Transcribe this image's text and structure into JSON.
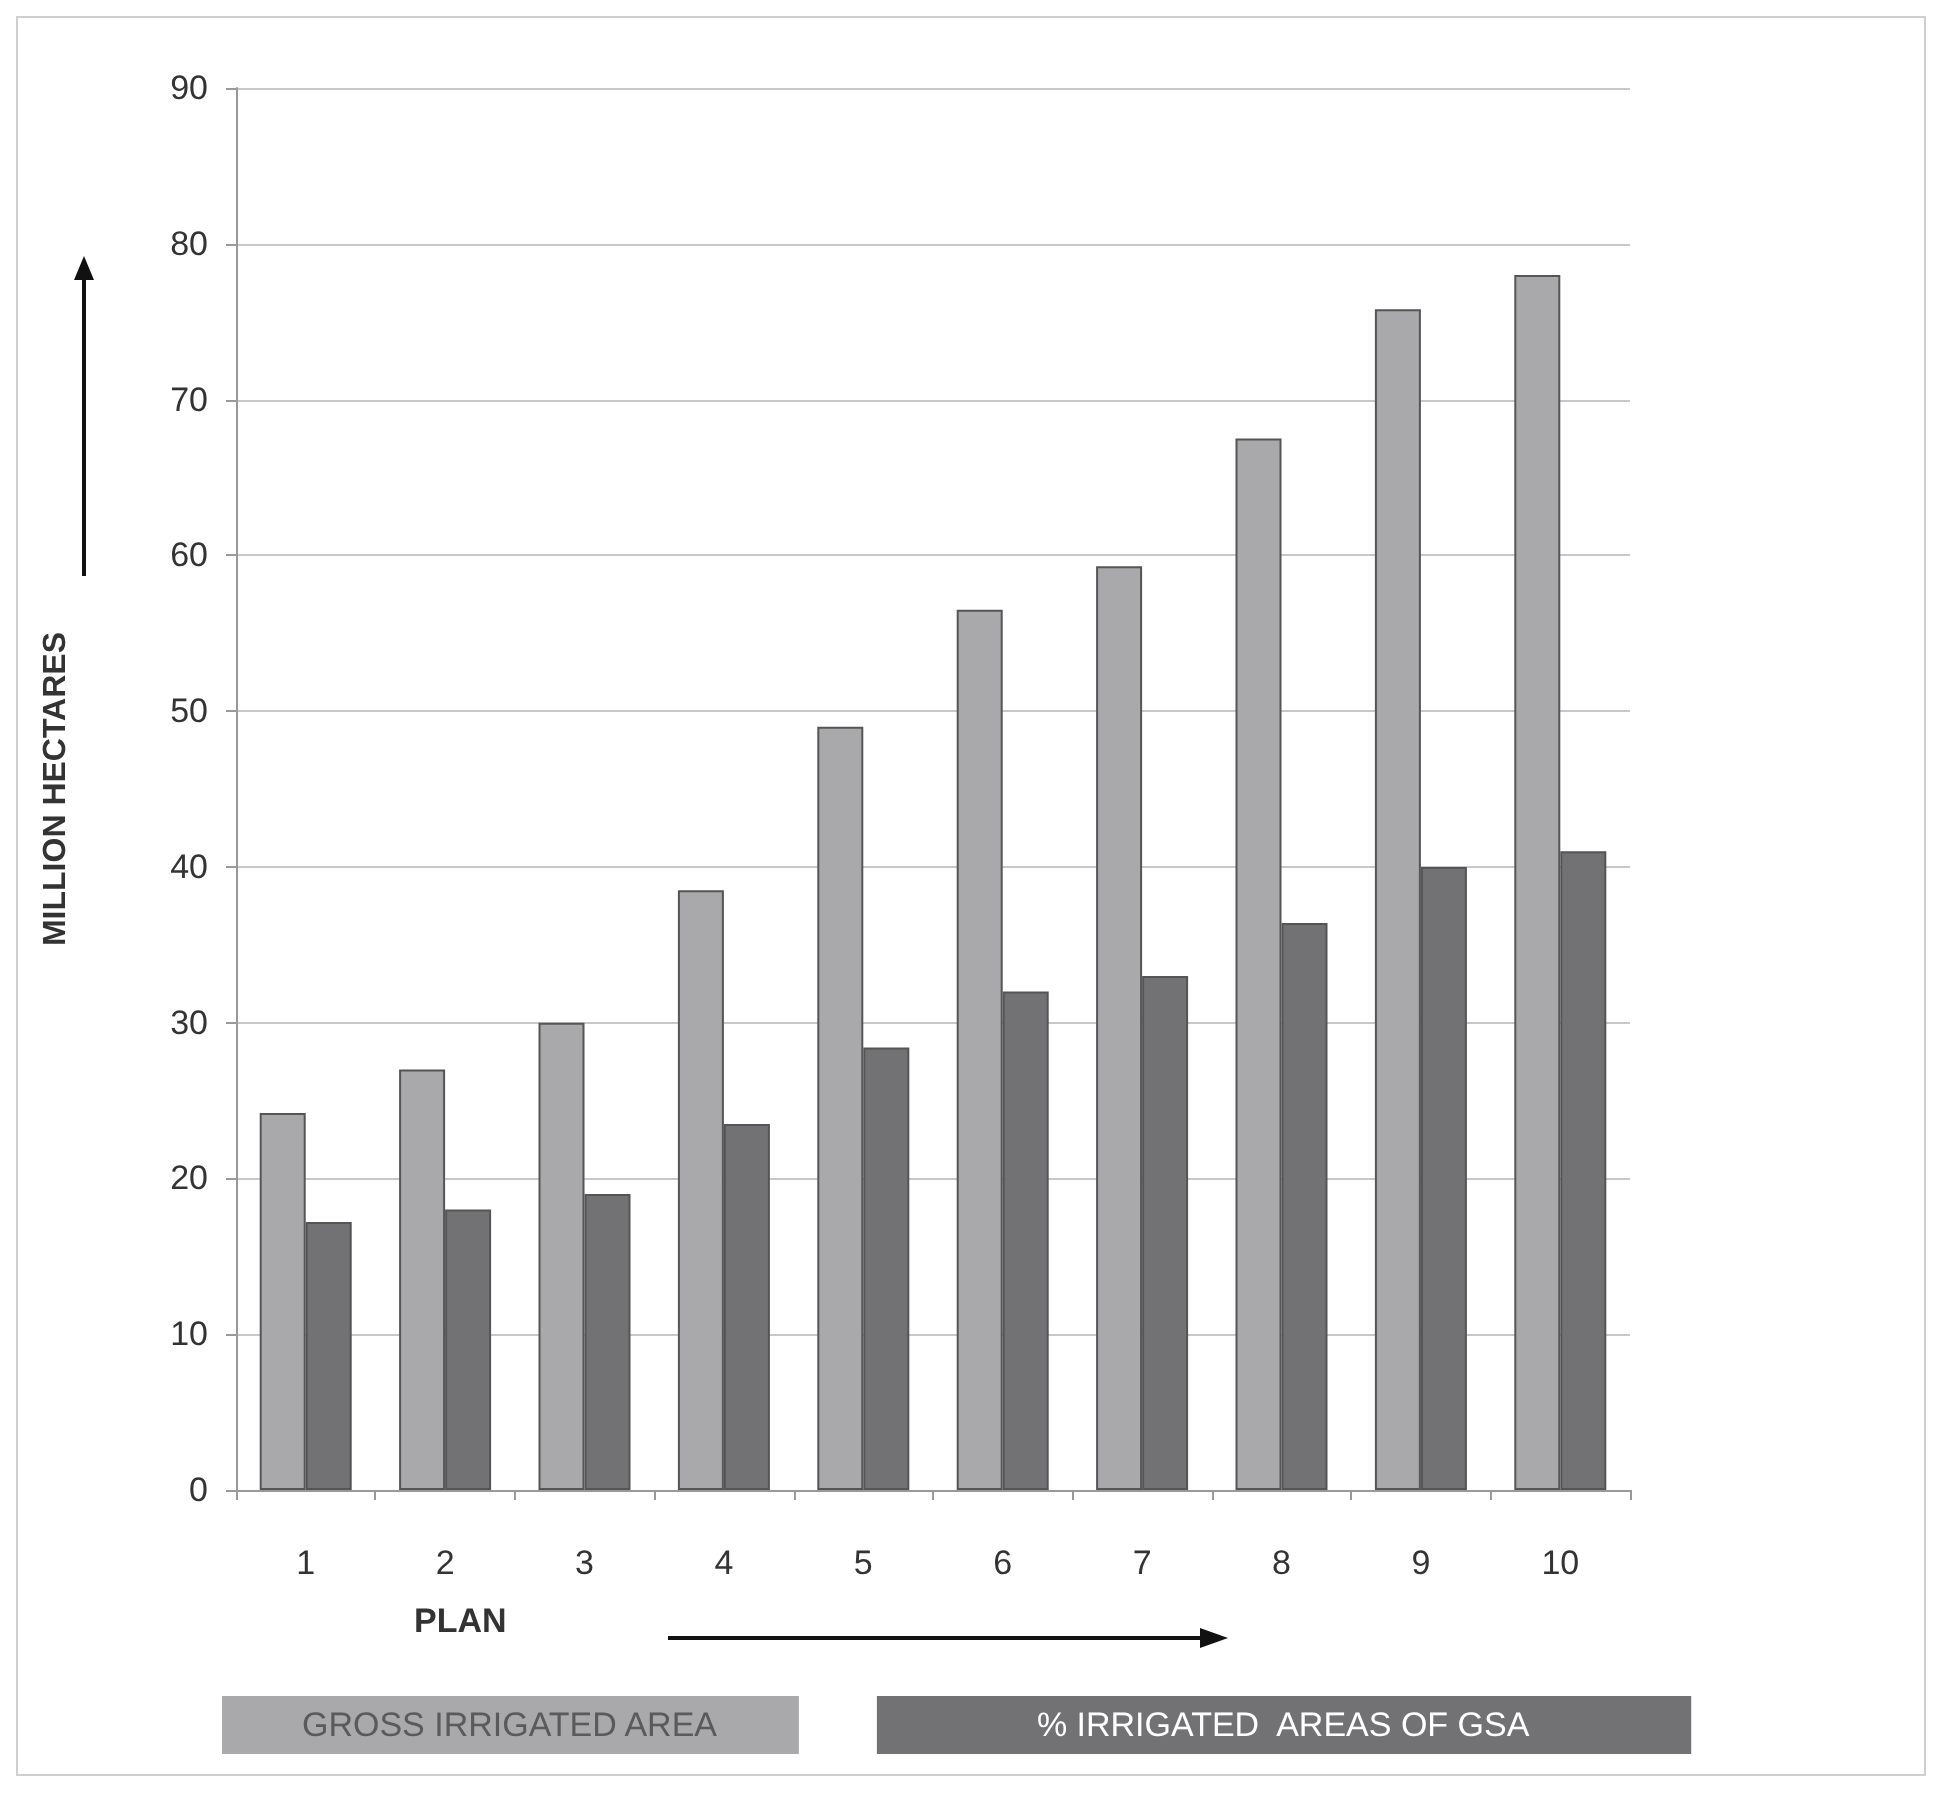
{
  "chart_data": {
    "type": "bar",
    "xlabel": "PLAN",
    "ylabel": "MILLION HECTARES",
    "categories": [
      "1",
      "2",
      "3",
      "4",
      "5",
      "6",
      "7",
      "8",
      "9",
      "10"
    ],
    "series": [
      {
        "name": "GROSS IRRIGATED AREA",
        "color": "#a9a9ab",
        "values": [
          24.2,
          27,
          30,
          38.5,
          49,
          56.5,
          59.3,
          67.5,
          75.8,
          78
        ]
      },
      {
        "name": "% IRRIGATED  AREAS OF GSA",
        "color": "#727274",
        "values": [
          17.2,
          18,
          19,
          23.5,
          28.4,
          32,
          33,
          36.4,
          40,
          41
        ]
      }
    ],
    "ylim": [
      0,
      90
    ],
    "yticks": [
      0,
      10,
      20,
      30,
      40,
      50,
      60,
      70,
      80,
      90
    ],
    "grid": "y",
    "legend": "bottom"
  }
}
